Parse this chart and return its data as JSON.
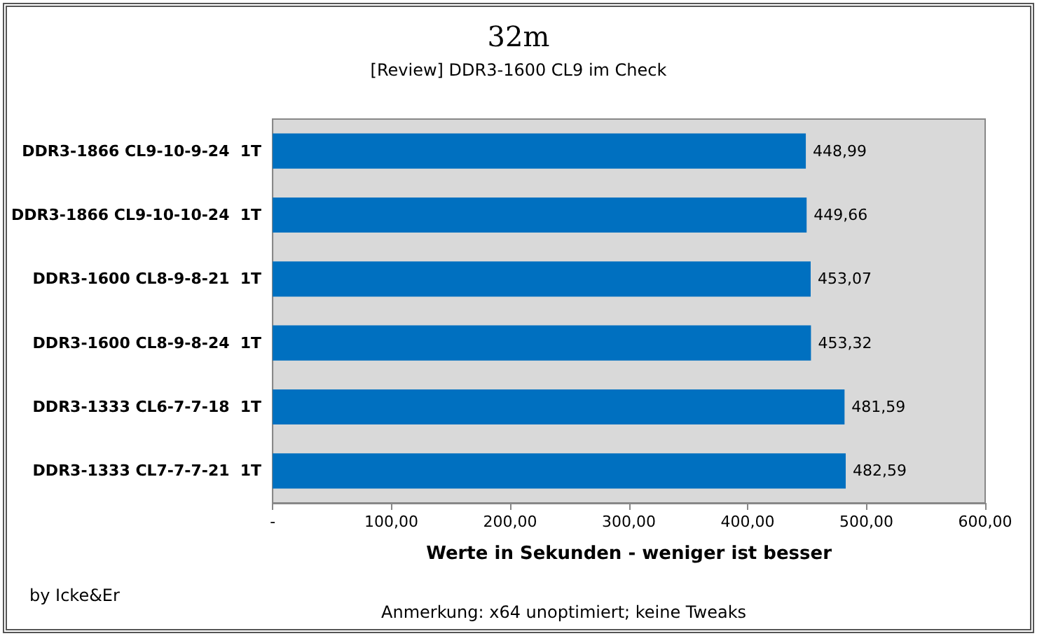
{
  "chart_data": {
    "type": "bar",
    "orientation": "horizontal",
    "title": "32m",
    "subtitle": "[Review] DDR3-1600 CL9 im Check",
    "xlabel": "Werte in Sekunden - weniger ist besser",
    "categories": [
      "DDR3-1866 CL9-10-9-24  1T",
      "DDR3-1866 CL9-10-10-24  1T",
      "DDR3-1600 CL8-9-8-21  1T",
      "DDR3-1600 CL8-9-8-24  1T",
      "DDR3-1333 CL6-7-7-18  1T",
      "DDR3-1333 CL7-7-7-21  1T"
    ],
    "values": [
      448.99,
      449.66,
      453.07,
      453.32,
      481.59,
      482.59
    ],
    "value_labels": [
      "448,99",
      "449,66",
      "453,07",
      "453,32",
      "481,59",
      "482,59"
    ],
    "color": "#0070c0",
    "xlim": [
      0,
      600
    ],
    "xticks": [
      {
        "value": 0,
        "label": "-"
      },
      {
        "value": 100,
        "label": "100,00"
      },
      {
        "value": 200,
        "label": "200,00"
      },
      {
        "value": 300,
        "label": "300,00"
      },
      {
        "value": 400,
        "label": "400,00"
      },
      {
        "value": 500,
        "label": "500,00"
      },
      {
        "value": 600,
        "label": "600,00"
      }
    ],
    "grid": false,
    "annotations": [
      "by Icke&Er",
      "Anmerkung: x64 unoptimiert; keine Tweaks"
    ]
  }
}
